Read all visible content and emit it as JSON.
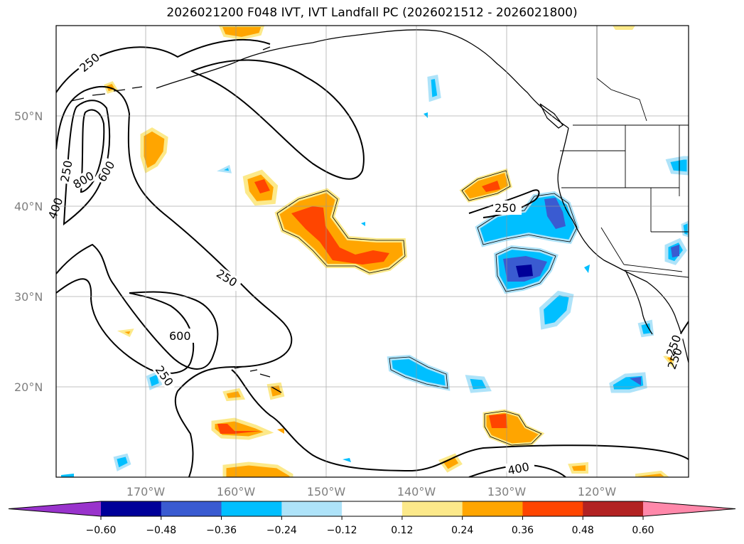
{
  "title": "2026021200 F048 IVT, IVT Landfall PC (2026021512 - 2026021800)",
  "lat_labels": [
    "50°N",
    "40°N",
    "30°N",
    "20°N"
  ],
  "lon_labels": [
    "170°W",
    "160°W",
    "150°W",
    "140°W",
    "130°W",
    "120°W"
  ],
  "contour_labels": [
    "250",
    "250",
    "800",
    "600",
    "400",
    "250",
    "250",
    "600",
    "250",
    "250",
    "250",
    "400"
  ],
  "colorbar": {
    "tick_labels": [
      "−0.60",
      "−0.48",
      "−0.36",
      "−0.24",
      "−0.12",
      "0.12",
      "0.24",
      "0.36",
      "0.48",
      "0.60"
    ],
    "colors": [
      "#9933cc",
      "#000099",
      "#3a5bd1",
      "#00bfff",
      "#aee3f9",
      "#ffffff",
      "#fce98a",
      "#ffa500",
      "#ff4500",
      "#b22222",
      "#ff88aa"
    ]
  }
}
